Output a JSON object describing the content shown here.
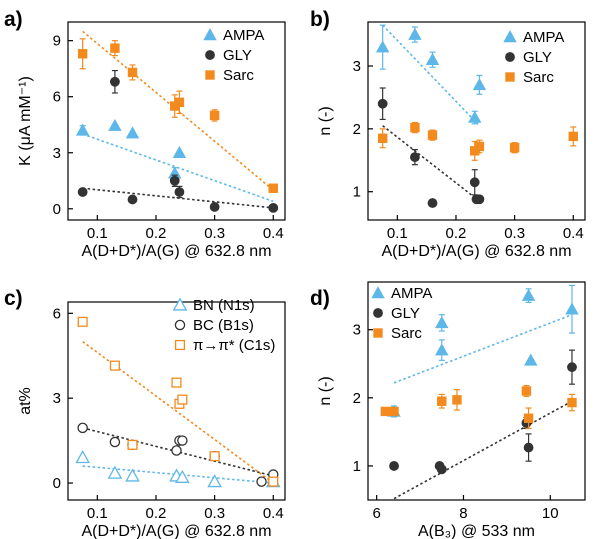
{
  "colors": {
    "AMPA": "#5db7e8",
    "GLY": "#333333",
    "Sarc": "#f28a1e",
    "axis": "#000000"
  },
  "chart_data": [
    {
      "panel": "a)",
      "type": "scatter",
      "xlabel": "A(D+D*)/A(G) @ 632.8 nm",
      "ylabel": "K (μA mM⁻¹)",
      "xlim": [
        0.05,
        0.42
      ],
      "ylim": [
        -0.6,
        10
      ],
      "xticks": [
        "0.1",
        "0.2",
        "0.3",
        "0.4"
      ],
      "yticks": [
        "0",
        "3",
        "6",
        "9"
      ],
      "legend_position": "top-right",
      "series": [
        {
          "name": "AMPA",
          "marker": "triangle",
          "points": [
            [
              0.075,
              4.2,
              0.25
            ],
            [
              0.13,
              4.45,
              0
            ],
            [
              0.16,
              4.05,
              0
            ],
            [
              0.232,
              1.9,
              0.3
            ],
            [
              0.24,
              3.0,
              0
            ]
          ],
          "fit": [
            [
              0.075,
              4.0
            ],
            [
              0.4,
              0.4
            ]
          ]
        },
        {
          "name": "GLY",
          "marker": "circle",
          "points": [
            [
              0.075,
              0.9,
              0
            ],
            [
              0.13,
              6.8,
              0.6
            ],
            [
              0.16,
              0.5,
              0
            ],
            [
              0.232,
              1.5,
              0.3
            ],
            [
              0.24,
              0.9,
              0.3
            ],
            [
              0.3,
              0.1,
              0
            ],
            [
              0.4,
              0.05,
              0
            ]
          ],
          "fit": [
            [
              0.075,
              1.1
            ],
            [
              0.4,
              0.05
            ]
          ]
        },
        {
          "name": "Sarc",
          "marker": "square",
          "points": [
            [
              0.075,
              8.3,
              0.8
            ],
            [
              0.13,
              8.6,
              0.4
            ],
            [
              0.16,
              7.3,
              0.4
            ],
            [
              0.232,
              5.5,
              0.6
            ],
            [
              0.24,
              5.7,
              0.6
            ],
            [
              0.3,
              5.0,
              0.3
            ],
            [
              0.4,
              1.1,
              0
            ]
          ],
          "fit": [
            [
              0.075,
              9.5
            ],
            [
              0.4,
              1.0
            ]
          ]
        }
      ]
    },
    {
      "panel": "b)",
      "type": "scatter",
      "xlabel": "A(D+D*)/A(G) @ 632.8 nm",
      "ylabel": "n (-)",
      "xlim": [
        0.05,
        0.42
      ],
      "ylim": [
        0.55,
        3.7
      ],
      "xticks": [
        "0.1",
        "0.2",
        "0.3",
        "0.4"
      ],
      "yticks": [
        "1",
        "2",
        "3"
      ],
      "legend_position": "top-right",
      "series": [
        {
          "name": "AMPA",
          "marker": "triangle",
          "points": [
            [
              0.075,
              3.3,
              0.35
            ],
            [
              0.13,
              3.5,
              0.12
            ],
            [
              0.16,
              3.1,
              0.12
            ],
            [
              0.232,
              2.18,
              0.1
            ],
            [
              0.24,
              2.7,
              0.15
            ]
          ],
          "fit": [
            [
              0.075,
              3.65
            ],
            [
              0.24,
              2.05
            ]
          ]
        },
        {
          "name": "GLY",
          "marker": "circle",
          "points": [
            [
              0.075,
              2.4,
              0.25
            ],
            [
              0.13,
              1.55,
              0.12
            ],
            [
              0.16,
              0.82,
              0
            ],
            [
              0.232,
              1.15,
              0.2
            ],
            [
              0.235,
              0.88,
              0
            ],
            [
              0.24,
              0.88,
              0
            ]
          ],
          "fit": [
            [
              0.075,
              2.05
            ],
            [
              0.24,
              0.85
            ]
          ]
        },
        {
          "name": "Sarc",
          "marker": "square",
          "points": [
            [
              0.075,
              1.85,
              0.15
            ],
            [
              0.13,
              2.02,
              0.08
            ],
            [
              0.16,
              1.9,
              0.08
            ],
            [
              0.232,
              1.65,
              0.15
            ],
            [
              0.24,
              1.72,
              0.1
            ],
            [
              0.3,
              1.7,
              0.08
            ],
            [
              0.4,
              1.88,
              0.15
            ]
          ],
          "fit": null
        }
      ]
    },
    {
      "panel": "c)",
      "type": "scatter",
      "xlabel": "A(D+D*)/A(G) @ 632.8 nm",
      "ylabel": "at%",
      "xlim": [
        0.05,
        0.42
      ],
      "ylim": [
        -0.6,
        6.4
      ],
      "xticks": [
        "0.1",
        "0.2",
        "0.3",
        "0.4"
      ],
      "yticks": [
        "0",
        "3",
        "6"
      ],
      "legend_position": "top-right",
      "series": [
        {
          "name": "BN (N1s)",
          "marker": "triangle-open",
          "points": [
            [
              0.075,
              0.9
            ],
            [
              0.13,
              0.35
            ],
            [
              0.16,
              0.25
            ],
            [
              0.235,
              0.25
            ],
            [
              0.245,
              0.2
            ],
            [
              0.3,
              0.05
            ],
            [
              0.4,
              0.05
            ]
          ],
          "fit": [
            [
              0.075,
              0.6
            ],
            [
              0.4,
              0.0
            ]
          ]
        },
        {
          "name": "BC (B1s)",
          "marker": "circle-open",
          "points": [
            [
              0.075,
              1.95
            ],
            [
              0.13,
              1.45
            ],
            [
              0.16,
              1.35
            ],
            [
              0.235,
              1.15
            ],
            [
              0.24,
              1.5
            ],
            [
              0.245,
              1.5
            ],
            [
              0.3,
              0.95
            ],
            [
              0.38,
              0.05
            ],
            [
              0.4,
              0.3
            ]
          ],
          "fit": [
            [
              0.075,
              1.95
            ],
            [
              0.4,
              0.25
            ]
          ]
        },
        {
          "name": "π→π* (C1s)",
          "marker": "square-open",
          "points": [
            [
              0.075,
              5.7
            ],
            [
              0.13,
              4.15
            ],
            [
              0.16,
              1.35
            ],
            [
              0.235,
              3.55
            ],
            [
              0.24,
              2.8
            ],
            [
              0.245,
              2.95
            ],
            [
              0.3,
              0.95
            ],
            [
              0.4,
              0.05
            ]
          ],
          "fit": [
            [
              0.075,
              5.0
            ],
            [
              0.4,
              0.0
            ]
          ]
        }
      ]
    },
    {
      "panel": "d)",
      "type": "scatter",
      "xlabel": "A(B₃) @ 533 nm",
      "ylabel": "n (-)",
      "xlim": [
        5.8,
        10.8
      ],
      "ylim": [
        0.5,
        3.7
      ],
      "xticks": [
        "6",
        "8",
        "10"
      ],
      "yticks": [
        "1",
        "2",
        "3"
      ],
      "legend_position": "top-left",
      "series": [
        {
          "name": "AMPA",
          "marker": "triangle",
          "points": [
            [
              6.4,
              1.8,
              0.08
            ],
            [
              7.5,
              3.1,
              0.12
            ],
            [
              7.5,
              2.7,
              0.15
            ],
            [
              9.5,
              3.5,
              0.1
            ],
            [
              9.55,
              2.55,
              0
            ],
            [
              10.5,
              3.3,
              0.35
            ]
          ],
          "fit": [
            [
              6.4,
              2.22
            ],
            [
              10.5,
              3.22
            ]
          ]
        },
        {
          "name": "GLY",
          "marker": "circle",
          "points": [
            [
              6.4,
              1.0,
              0
            ],
            [
              7.45,
              1.0,
              0
            ],
            [
              7.5,
              0.95,
              0
            ],
            [
              9.45,
              1.63,
              0.08
            ],
            [
              9.5,
              1.27,
              0.2
            ],
            [
              10.5,
              2.45,
              0.25
            ]
          ],
          "fit": [
            [
              6.4,
              0.52
            ],
            [
              10.5,
              1.95
            ]
          ]
        },
        {
          "name": "Sarc",
          "marker": "square",
          "points": [
            [
              6.2,
              1.8,
              0
            ],
            [
              6.4,
              1.8,
              0
            ],
            [
              7.5,
              1.95,
              0.1
            ],
            [
              7.85,
              1.97,
              0.15
            ],
            [
              9.45,
              2.1,
              0.08
            ],
            [
              9.5,
              1.7,
              0.15
            ],
            [
              10.5,
              1.93,
              0.12
            ]
          ],
          "fit": null
        }
      ]
    }
  ]
}
